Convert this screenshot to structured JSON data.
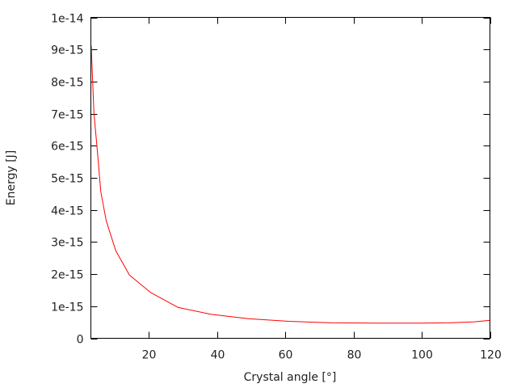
{
  "chart_data": {
    "type": "line",
    "title": "",
    "xlabel": "Crystal angle [°]",
    "ylabel": "Energy [J]",
    "xlim": [
      3,
      120
    ],
    "ylim": [
      0,
      1e-14
    ],
    "xticks": [
      20,
      40,
      60,
      80,
      100,
      120
    ],
    "xtick_labels": [
      "20",
      "40",
      "60",
      "80",
      "100",
      "120"
    ],
    "yticks": [
      0,
      1e-15,
      2e-15,
      3e-15,
      4e-15,
      5e-15,
      6e-15,
      7e-15,
      8e-15,
      9e-15,
      1e-14
    ],
    "ytick_labels": [
      "0",
      "1e-15",
      "2e-15",
      "3e-15",
      "4e-15",
      "5e-15",
      "6e-15",
      "7e-15",
      "8e-15",
      "9e-15",
      "1e-14"
    ],
    "grid": false,
    "legend": "none",
    "series": [
      {
        "color": "#ff0000",
        "x": [
          3.1,
          3.9,
          5.1,
          5.9,
          7.5,
          10.3,
          14.3,
          20.6,
          28.6,
          38.1,
          49.1,
          61,
          73.7,
          87.1,
          100,
          107.7,
          115.2,
          120
        ],
        "y": [
          9.12e-15,
          7.02e-15,
          5.59e-15,
          4.58e-15,
          3.66e-15,
          2.73e-15,
          1.97e-15,
          1.42e-15,
          9.6e-16,
          7.5e-16,
          6.1e-16,
          5.3e-16,
          4.8e-16,
          4.7e-16,
          4.7e-16,
          4.8e-16,
          5.1e-16,
          5.6e-16
        ]
      }
    ]
  }
}
